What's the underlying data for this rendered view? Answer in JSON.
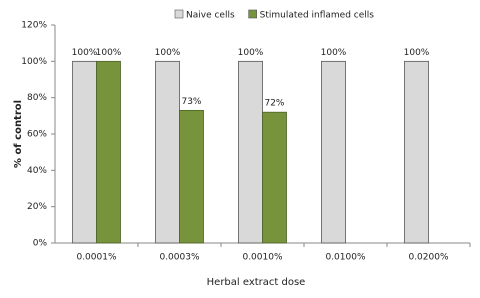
{
  "chart_data": {
    "type": "bar",
    "categories": [
      "0.0001%",
      "0.0003%",
      "0.0010%",
      "0.0100%",
      "0.0200%"
    ],
    "series": [
      {
        "name": "Naive cells",
        "color": "#d9d9d9",
        "values": [
          100,
          100,
          100,
          100,
          100
        ],
        "value_labels": [
          "100%",
          "100%",
          "100%",
          "100%",
          "100%"
        ]
      },
      {
        "name": "Stimulated inflamed cells",
        "color": "#77933c",
        "values": [
          100,
          73,
          72,
          null,
          null
        ],
        "value_labels": [
          "100%",
          "73%",
          "72%",
          null,
          null
        ]
      }
    ],
    "x_label": "Herbal extract dose",
    "y_label": "% of control",
    "ylim": [
      0,
      120
    ],
    "yticks": [
      {
        "value": 0,
        "label": "0%"
      },
      {
        "value": 20,
        "label": "20%"
      },
      {
        "value": 40,
        "label": "40%"
      },
      {
        "value": 60,
        "label": "60%"
      },
      {
        "value": 80,
        "label": "80%"
      },
      {
        "value": 100,
        "label": "100%"
      },
      {
        "value": 120,
        "label": "120%"
      }
    ],
    "grid": false,
    "legend": "top"
  }
}
